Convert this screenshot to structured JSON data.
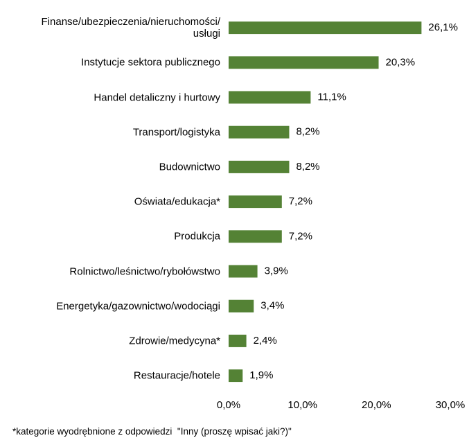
{
  "chart_data": {
    "type": "bar",
    "orientation": "horizontal",
    "categories": [
      "Finanse/ubezpieczenia/nieruchomości/\nusługi",
      "Instytucje sektora publicznego",
      "Handel detaliczny i hurtowy",
      "Transport/logistyka",
      "Budownictwo",
      "Oświata/edukacja*",
      "Produkcja",
      "Rolnictwo/leśnictwo/rybołówstwo",
      "Energetyka/gazownictwo/wodociągi",
      "Zdrowie/medycyna*",
      "Restauracje/hotele"
    ],
    "values": [
      26.1,
      20.3,
      11.1,
      8.2,
      8.2,
      7.2,
      7.2,
      3.9,
      3.4,
      2.4,
      1.9
    ],
    "value_labels": [
      "26,1%",
      "20,3%",
      "11,1%",
      "8,2%",
      "8,2%",
      "7,2%",
      "7,2%",
      "3,9%",
      "3,4%",
      "2,4%",
      "1,9%"
    ],
    "color": "#548235",
    "xlim": [
      0,
      30
    ],
    "xticks": [
      {
        "value": 0,
        "label": "0,0%"
      },
      {
        "value": 10,
        "label": "10,0%"
      },
      {
        "value": 20,
        "label": "20,0%"
      },
      {
        "value": 30,
        "label": "30,0%"
      }
    ],
    "grid": false,
    "footnote": "*kategorie wyodrębnione z odpowiedzi  \"Inny (proszę wpisać jaki?)\""
  }
}
